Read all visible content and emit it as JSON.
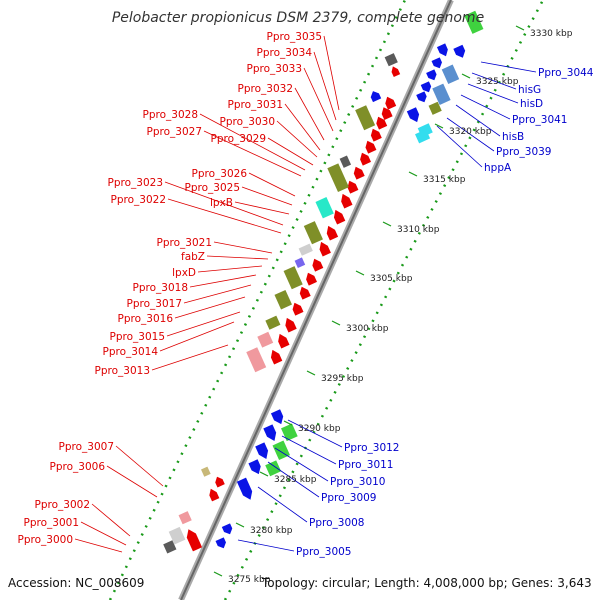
{
  "title": "Pelobacter propionicus DSM 2379, complete genome",
  "footer": {
    "accession": "Accession: NC_008609",
    "topology": "Topology: circular; Length: 4,008,000 bp; Genes: 3,643"
  },
  "colors": {
    "forward_label": "#dd0000",
    "reverse_label": "#0000cc",
    "backbone": "#888888",
    "tick_dots": "#1a9a1a"
  },
  "ticks": [
    "3330 kbp",
    "3325 kbp",
    "3320 kbp",
    "3315 kbp",
    "3310 kbp",
    "3305 kbp",
    "3300 kbp",
    "3295 kbp",
    "3290 kbp",
    "3285 kbp",
    "3280 kbp",
    "3275 kbp"
  ],
  "left_labels": [
    "Ppro_3035",
    "Ppro_3034",
    "Ppro_3033",
    "Ppro_3032",
    "Ppro_3031",
    "Ppro_3030",
    "Ppro_3029",
    "Ppro_3028",
    "Ppro_3027",
    "Ppro_3026",
    "Ppro_3025",
    "lpxB",
    "Ppro_3023",
    "Ppro_3022",
    "Ppro_3021",
    "fabZ",
    "lpxD",
    "Ppro_3018",
    "Ppro_3017",
    "Ppro_3016",
    "Ppro_3015",
    "Ppro_3014",
    "Ppro_3013",
    "Ppro_3007",
    "Ppro_3006",
    "Ppro_3002",
    "Ppro_3001",
    "Ppro_3000"
  ],
  "right_labels": [
    "Ppro_3044",
    "hisG",
    "hisD",
    "Ppro_3041",
    "hisB",
    "Ppro_3039",
    "hppA",
    "Ppro_3012",
    "Ppro_3011",
    "Ppro_3010",
    "Ppro_3009",
    "Ppro_3008",
    "Ppro_3005"
  ]
}
